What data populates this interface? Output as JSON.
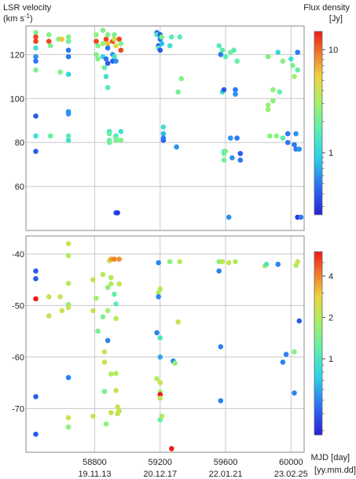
{
  "chart_data": {
    "type": "scatter",
    "y_axis_label_top": "LSR velocity",
    "y_axis_unit": "(km s",
    "y_axis_unit_sup": "-1",
    "y_axis_unit_close": ")",
    "x_axis_label": "MJD [day]",
    "x_axis_label_2": "[yy.mm.dd]",
    "x_range": [
      58380,
      60080
    ],
    "x_ticks": [
      58800,
      59200,
      59600,
      60000
    ],
    "x_tick_dates": [
      "19.11.13",
      "20.12.17",
      "22.01.21",
      "23.02.25"
    ],
    "panels": [
      {
        "name": "top",
        "ylim": [
          40,
          133
        ],
        "y_ticks": [
          60,
          80,
          100,
          120
        ],
        "colorbar": {
          "title": "Flux density",
          "unit": "[Jy]",
          "scale": "log",
          "range": [
            0.25,
            15
          ],
          "ticks": [
            1,
            10
          ],
          "tick_labels": [
            "1",
            "10"
          ]
        },
        "points": [
          [
            58440,
            130,
            2.2
          ],
          [
            58440,
            126,
            12
          ],
          [
            58440,
            128,
            12
          ],
          [
            58440,
            123,
            1.2
          ],
          [
            58440,
            119,
            0.6
          ],
          [
            58440,
            117,
            0.5
          ],
          [
            58440,
            113,
            2.2
          ],
          [
            58440,
            92,
            0.4
          ],
          [
            58440,
            83,
            1.2
          ],
          [
            58440,
            76,
            0.4
          ],
          [
            58520,
            129,
            2.4
          ],
          [
            58520,
            126,
            12
          ],
          [
            58530,
            124,
            2.2
          ],
          [
            58530,
            83,
            1.8
          ],
          [
            58580,
            127,
            2.4
          ],
          [
            58590,
            112,
            2.4
          ],
          [
            58600,
            127,
            6
          ],
          [
            58640,
            128,
            2.3
          ],
          [
            58640,
            126,
            2.0
          ],
          [
            58640,
            122,
            0.5
          ],
          [
            58640,
            119,
            0.5
          ],
          [
            58640,
            111,
            1.0
          ],
          [
            58640,
            94,
            0.6
          ],
          [
            58640,
            93,
            0.6
          ],
          [
            58640,
            83,
            1.6
          ],
          [
            58640,
            81,
            1.2
          ],
          [
            58810,
            129,
            2.6
          ],
          [
            58810,
            126,
            12
          ],
          [
            58810,
            120,
            2.4
          ],
          [
            58820,
            124,
            2.2
          ],
          [
            58820,
            118,
            2.3
          ],
          [
            58850,
            131,
            2.3
          ],
          [
            58850,
            125,
            2.8
          ],
          [
            58850,
            119,
            1.0
          ],
          [
            58860,
            114,
            1.8
          ],
          [
            58870,
            110,
            1.2
          ],
          [
            58870,
            127,
            12
          ],
          [
            58870,
            118,
            0.5
          ],
          [
            58880,
            129,
            2.3
          ],
          [
            58880,
            125,
            6
          ],
          [
            58880,
            123,
            0.5
          ],
          [
            58880,
            116,
            0.4
          ],
          [
            58880,
            105,
            1.6
          ],
          [
            58890,
            85,
            1.4
          ],
          [
            58890,
            84,
            1.8
          ],
          [
            58890,
            81,
            1.8
          ],
          [
            58890,
            80,
            2.0
          ],
          [
            58910,
            126,
            12
          ],
          [
            58910,
            120,
            0.6
          ],
          [
            58910,
            117,
            0.4
          ],
          [
            58920,
            129,
            2.3
          ],
          [
            58920,
            127,
            4
          ],
          [
            58920,
            119,
            1.3
          ],
          [
            58930,
            124,
            5
          ],
          [
            58930,
            117,
            0.6
          ],
          [
            58930,
            83,
            1.4
          ],
          [
            58930,
            82,
            2.0
          ],
          [
            58930,
            81,
            2.2
          ],
          [
            58930,
            48,
            0.4
          ],
          [
            58940,
            48,
            0.3
          ],
          [
            58950,
            127,
            12
          ],
          [
            58960,
            125,
            2.3
          ],
          [
            58960,
            122,
            12
          ],
          [
            58960,
            85,
            1.2
          ],
          [
            58960,
            81,
            2.2
          ],
          [
            59180,
            130,
            0.5
          ],
          [
            59180,
            129,
            1.4
          ],
          [
            59190,
            124,
            0.4
          ],
          [
            59190,
            123,
            1.5
          ],
          [
            59200,
            129,
            0.4
          ],
          [
            59200,
            127,
            0.5
          ],
          [
            59200,
            122,
            0.4
          ],
          [
            59210,
            128,
            2.2
          ],
          [
            59210,
            125,
            0.8
          ],
          [
            59220,
            87,
            1.2
          ],
          [
            59220,
            84,
            0.8
          ],
          [
            59220,
            81,
            0.4
          ],
          [
            59220,
            82,
            0.5
          ],
          [
            59260,
            124,
            1.2
          ],
          [
            59270,
            128,
            1.6
          ],
          [
            59300,
            78,
            0.6
          ],
          [
            59310,
            103,
            2.0
          ],
          [
            59320,
            128,
            1.6
          ],
          [
            59330,
            109,
            2.4
          ],
          [
            59560,
            124,
            1.6
          ],
          [
            59570,
            120,
            0.5
          ],
          [
            59580,
            122,
            1.6
          ],
          [
            59580,
            103,
            1.2
          ],
          [
            59590,
            104,
            0.4
          ],
          [
            59590,
            75,
            2.0
          ],
          [
            59590,
            72,
            2.0
          ],
          [
            59590,
            76,
            1.6
          ],
          [
            59600,
            119,
            1.7
          ],
          [
            59600,
            76,
            2.2
          ],
          [
            59620,
            46,
            0.6
          ],
          [
            59630,
            82,
            0.6
          ],
          [
            59630,
            121,
            2.0
          ],
          [
            59640,
            73,
            0.6
          ],
          [
            59650,
            122,
            1.6
          ],
          [
            59660,
            104,
            0.5
          ],
          [
            59660,
            102,
            0.6
          ],
          [
            59670,
            117,
            1.8
          ],
          [
            59670,
            82,
            0.5
          ],
          [
            59690,
            75,
            0.4
          ],
          [
            59690,
            72,
            0.5
          ],
          [
            59860,
            97,
            2.8
          ],
          [
            59860,
            95,
            2.8
          ],
          [
            59860,
            119,
            2.3
          ],
          [
            59870,
            83,
            2.4
          ],
          [
            59890,
            104,
            2.6
          ],
          [
            59890,
            99,
            2.6
          ],
          [
            59910,
            83,
            2.6
          ],
          [
            59920,
            121,
            1.0
          ],
          [
            59930,
            103,
            1.8
          ],
          [
            59950,
            117,
            2.4
          ],
          [
            59950,
            82,
            1.6
          ],
          [
            59980,
            84,
            0.5
          ],
          [
            59980,
            80,
            0.5
          ],
          [
            60000,
            118,
            1.2
          ],
          [
            60010,
            115,
            2.2
          ],
          [
            60020,
            110,
            3.0
          ],
          [
            60020,
            79,
            0.5
          ],
          [
            60030,
            84,
            0.6
          ],
          [
            60030,
            77,
            0.5
          ],
          [
            60040,
            121,
            0.5
          ],
          [
            60040,
            113,
            1.8
          ],
          [
            60040,
            46,
            0.3
          ],
          [
            60060,
            46,
            0.5
          ],
          [
            60050,
            77,
            0.6
          ]
        ]
      },
      {
        "name": "bottom",
        "ylim": [
          -78.5,
          -36.5
        ],
        "y_ticks": [
          -70,
          -60,
          -50,
          -40
        ],
        "colorbar": {
          "title": "",
          "unit": "",
          "scale": "log",
          "range": [
            0.28,
            6.0
          ],
          "ticks": [
            1,
            2,
            4
          ],
          "tick_labels": [
            "1",
            "2",
            "4"
          ]
        },
        "points": [
          [
            58440,
            -43.3,
            0.4
          ],
          [
            58440,
            -44.8,
            0.4
          ],
          [
            58440,
            -48.7,
            6
          ],
          [
            58440,
            -67.7,
            0.4
          ],
          [
            58440,
            -75,
            0.4
          ],
          [
            58520,
            -48.3,
            2.2
          ],
          [
            58520,
            -52,
            2.2
          ],
          [
            58590,
            -48.3,
            2.2
          ],
          [
            58600,
            -51,
            2.2
          ],
          [
            58640,
            -38,
            2.2
          ],
          [
            58640,
            -40.3,
            2.0
          ],
          [
            58640,
            -45.7,
            2.0
          ],
          [
            58640,
            -49.8,
            1.6
          ],
          [
            58640,
            -50.4,
            2.2
          ],
          [
            58640,
            -64,
            0.5
          ],
          [
            58640,
            -71.8,
            2.2
          ],
          [
            58640,
            -73.6,
            1.6
          ],
          [
            58790,
            -45,
            2.4
          ],
          [
            58790,
            -51,
            2.2
          ],
          [
            58790,
            -71.5,
            2.2
          ],
          [
            58810,
            -48.6,
            1.8
          ],
          [
            58820,
            -55,
            1.4
          ],
          [
            58850,
            -44,
            2.0
          ],
          [
            58850,
            -52.2,
            1.4
          ],
          [
            58860,
            -59,
            2.2
          ],
          [
            58860,
            -61,
            2.2
          ],
          [
            58860,
            -66.7,
            1.4
          ],
          [
            58870,
            -73,
            1.6
          ],
          [
            58880,
            -46.5,
            1.6
          ],
          [
            58880,
            -51,
            1.8
          ],
          [
            58880,
            -56.8,
            0.5
          ],
          [
            58890,
            -41.3,
            2.3
          ],
          [
            58900,
            -41,
            3.5
          ],
          [
            58900,
            -44.6,
            2.0
          ],
          [
            58900,
            -45.8,
            2.0
          ],
          [
            58900,
            -63.3,
            2.0
          ],
          [
            58900,
            -70.8,
            2.2
          ],
          [
            58920,
            -41,
            4
          ],
          [
            58920,
            -47.8,
            1.2
          ],
          [
            58930,
            -49.7,
            1.2
          ],
          [
            58930,
            -52.5,
            2.0
          ],
          [
            58930,
            -63.2,
            2.0
          ],
          [
            58930,
            -66.5,
            2.2
          ],
          [
            58940,
            -71,
            2.2
          ],
          [
            58940,
            -69.7,
            2.2
          ],
          [
            58950,
            -41,
            3.8
          ],
          [
            58950,
            -45.8,
            2.2
          ],
          [
            58950,
            -70.5,
            2.2
          ],
          [
            59180,
            -55.3,
            0.5
          ],
          [
            59180,
            -64.2,
            2.0
          ],
          [
            59190,
            -41.7,
            0.5
          ],
          [
            59190,
            -47.5,
            2.0
          ],
          [
            59190,
            -48.3,
            0.5
          ],
          [
            59200,
            -46.8,
            2.0
          ],
          [
            59200,
            -56.3,
            1.0
          ],
          [
            59200,
            -60,
            0.6
          ],
          [
            59200,
            -65,
            2.2
          ],
          [
            59200,
            -66.8,
            1.8
          ],
          [
            59200,
            -67.3,
            6
          ],
          [
            59200,
            -68,
            2.2
          ],
          [
            59200,
            -72.2,
            1.2
          ],
          [
            59210,
            -71.5,
            2.0
          ],
          [
            59260,
            -41.5,
            1.6
          ],
          [
            59270,
            -77.8,
            6
          ],
          [
            59280,
            -60.8,
            0.5
          ],
          [
            59290,
            -61.2,
            1.6
          ],
          [
            59310,
            -53.2,
            2.2
          ],
          [
            59320,
            -41.5,
            2.0
          ],
          [
            59560,
            -41.5,
            1.6
          ],
          [
            59560,
            -43.3,
            0.5
          ],
          [
            59570,
            -58,
            0.5
          ],
          [
            59570,
            -68.5,
            0.5
          ],
          [
            59580,
            -41.5,
            2.2
          ],
          [
            59620,
            -41.7,
            2.2
          ],
          [
            59660,
            -41.5,
            2.0
          ],
          [
            59840,
            -42.3,
            2.2
          ],
          [
            59850,
            -42,
            1.0
          ],
          [
            59920,
            -42,
            0.5
          ],
          [
            59950,
            -61,
            0.5
          ],
          [
            59970,
            -59.5,
            0.5
          ],
          [
            60020,
            -59,
            1.5
          ],
          [
            60020,
            -67,
            0.5
          ],
          [
            60030,
            -42.2,
            2.0
          ],
          [
            60040,
            -41.5,
            2.2
          ],
          [
            60050,
            -53,
            0.4
          ]
        ]
      }
    ]
  }
}
